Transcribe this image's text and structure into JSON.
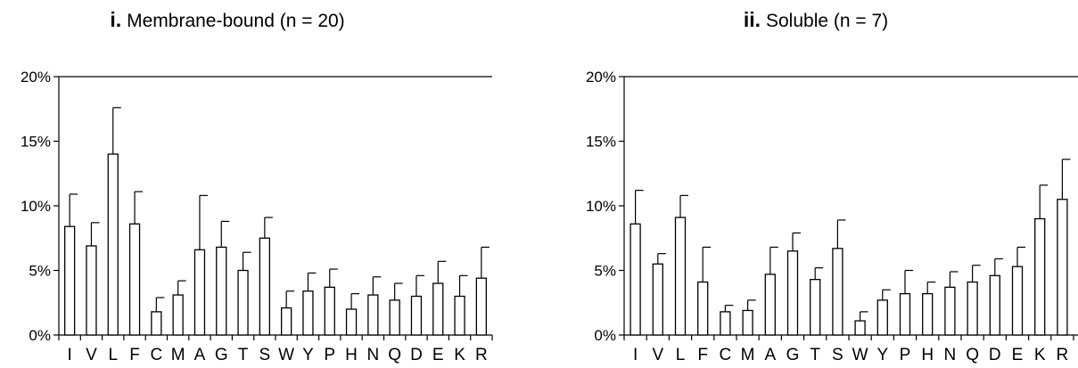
{
  "chart_data": [
    {
      "type": "bar",
      "title_roman": "i.",
      "title": "Membrane-bound (n = 20)",
      "categories": [
        "I",
        "V",
        "L",
        "F",
        "C",
        "M",
        "A",
        "G",
        "T",
        "S",
        "W",
        "Y",
        "P",
        "H",
        "N",
        "Q",
        "D",
        "E",
        "K",
        "R"
      ],
      "values": [
        8.4,
        6.9,
        14.0,
        8.6,
        1.8,
        3.1,
        6.6,
        6.8,
        5.0,
        7.5,
        2.1,
        3.4,
        3.7,
        2.0,
        3.1,
        2.7,
        3.0,
        4.0,
        3.0,
        4.4
      ],
      "errors": [
        2.5,
        1.8,
        3.6,
        2.5,
        1.1,
        1.1,
        4.2,
        2.0,
        1.4,
        1.6,
        1.3,
        1.4,
        1.4,
        1.2,
        1.4,
        1.3,
        1.6,
        1.7,
        1.6,
        2.4
      ],
      "ylim": [
        0,
        20
      ],
      "yticks": [
        "0%",
        "5%",
        "10%",
        "15%",
        "20%"
      ],
      "xlabel": "",
      "ylabel": "",
      "grid": false
    },
    {
      "type": "bar",
      "title_roman": "ii.",
      "title": "Soluble  (n = 7)",
      "categories": [
        "I",
        "V",
        "L",
        "F",
        "C",
        "M",
        "A",
        "G",
        "T",
        "S",
        "W",
        "Y",
        "P",
        "H",
        "N",
        "Q",
        "D",
        "E",
        "K",
        "R"
      ],
      "values": [
        8.6,
        5.5,
        9.1,
        4.1,
        1.8,
        1.9,
        4.7,
        6.5,
        4.3,
        6.7,
        1.1,
        2.7,
        3.2,
        3.2,
        3.7,
        4.1,
        4.6,
        5.3,
        9.0,
        10.5
      ],
      "errors": [
        2.6,
        0.8,
        1.7,
        2.7,
        0.5,
        0.8,
        2.1,
        1.4,
        0.9,
        2.2,
        0.7,
        0.8,
        1.8,
        0.9,
        1.2,
        1.3,
        1.3,
        1.5,
        2.6,
        3.1
      ],
      "ylim": [
        0,
        20
      ],
      "yticks": [
        "0%",
        "5%",
        "10%",
        "15%",
        "20%"
      ],
      "xlabel": "",
      "ylabel": "",
      "grid": false
    }
  ]
}
